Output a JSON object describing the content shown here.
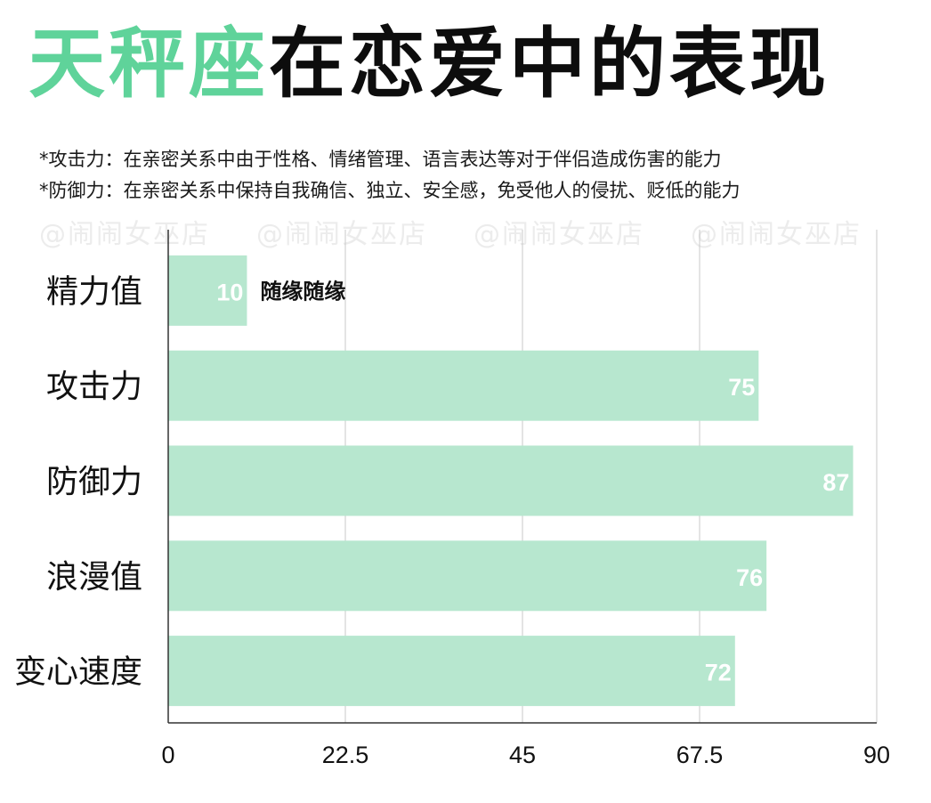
{
  "title": {
    "accent": "天秤座",
    "rest": "在恋爱中的表现"
  },
  "notes": [
    "*攻击力：在亲密关系中由于性格、情绪管理、语言表达等对于伴侣造成伤害的能力",
    "*防御力：在亲密关系中保持自我确信、独立、安全感，免受他人的侵扰、贬低的能力"
  ],
  "watermark": [
    "@闹闹女巫店",
    "@闹闹女巫店",
    "@闹闹女巫店",
    "@闹闹女巫店"
  ],
  "colors": {
    "accent": "#5fd39a",
    "bar": "#b7e7cf",
    "grid": "#c8c8c8",
    "axis": "#333333"
  },
  "chart_data": {
    "type": "bar",
    "orientation": "horizontal",
    "categories": [
      "精力值",
      "攻击力",
      "防御力",
      "浪漫值",
      "变心速度"
    ],
    "values": [
      10,
      75,
      87,
      76,
      72
    ],
    "xlim": [
      0,
      90
    ],
    "xticks": [
      "0",
      "22.5",
      "45",
      "67.5",
      "90"
    ],
    "grid": "vertical",
    "annotations": [
      {
        "category": "精力值",
        "text": "随缘随缘"
      }
    ]
  }
}
